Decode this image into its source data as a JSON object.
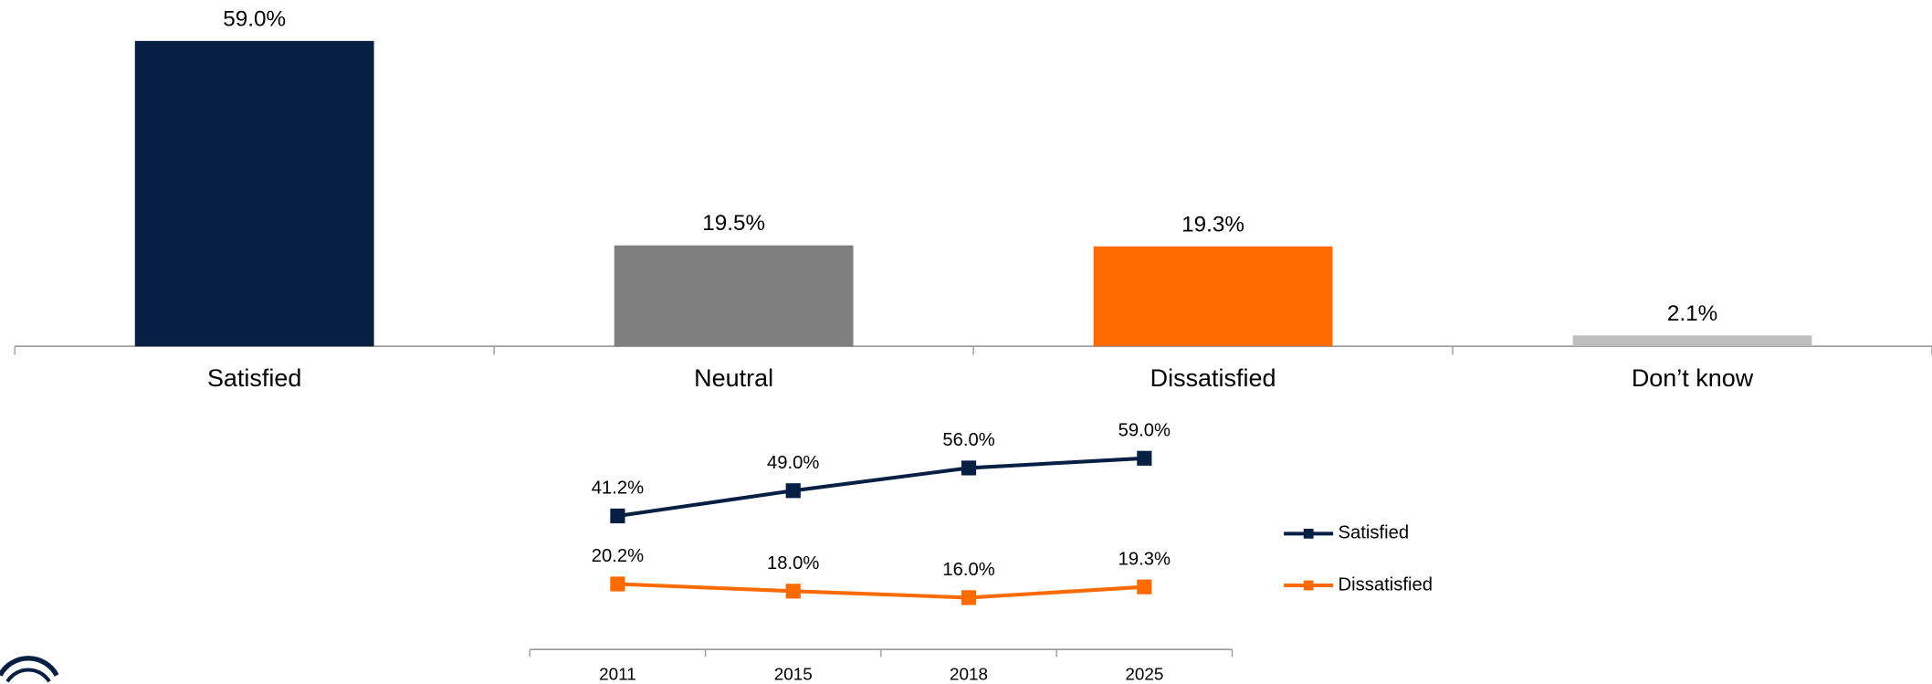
{
  "chart_data": [
    {
      "type": "bar",
      "categories": [
        "Satisfied",
        "Neutral",
        "Dissatisfied",
        "Don’t know"
      ],
      "values": [
        59.0,
        19.5,
        19.3,
        2.1
      ],
      "value_labels": [
        "59.0%",
        "19.5%",
        "19.3%",
        "2.1%"
      ],
      "colors": [
        "#061f42",
        "#7f7f7f",
        "#ff6a00",
        "#bfbfbf"
      ]
    },
    {
      "type": "line",
      "categories": [
        "2011",
        "2015",
        "2018",
        "2025"
      ],
      "series": [
        {
          "name": "Satisfied",
          "color": "#061f42",
          "values": [
            41.2,
            49.0,
            56.0,
            59.0
          ],
          "value_labels": [
            "41.2%",
            "49.0%",
            "56.0%",
            "59.0%"
          ]
        },
        {
          "name": "Dissatisfied",
          "color": "#ff6a00",
          "values": [
            20.2,
            18.0,
            16.0,
            19.3
          ],
          "value_labels": [
            "20.2%",
            "18.0%",
            "16.0%",
            "19.3%"
          ]
        }
      ],
      "legend": "right"
    }
  ]
}
